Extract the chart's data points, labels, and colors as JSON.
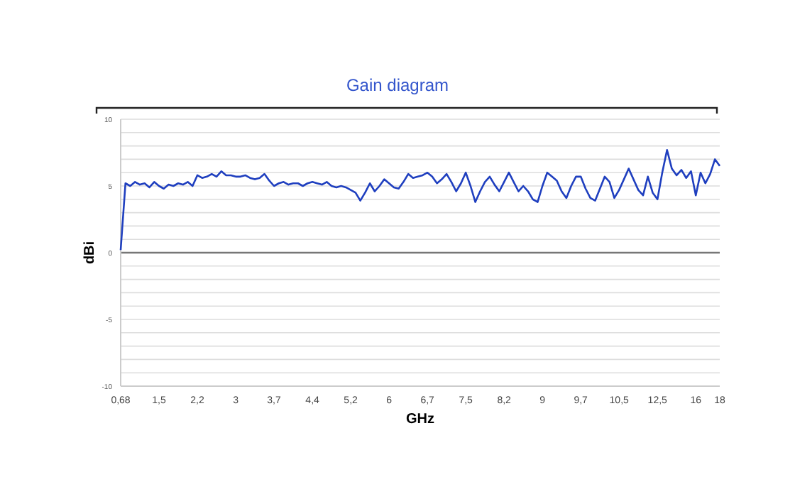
{
  "chart_data": {
    "type": "line",
    "title": "Gain diagram",
    "xlabel": "GHz",
    "ylabel": "dBi",
    "categories": [
      "0,68",
      null,
      null,
      null,
      null,
      null,
      null,
      null,
      "1,5",
      null,
      null,
      null,
      null,
      null,
      null,
      null,
      "2,2",
      null,
      null,
      null,
      null,
      null,
      null,
      null,
      "3",
      null,
      null,
      null,
      null,
      null,
      null,
      null,
      "3,7",
      null,
      null,
      null,
      null,
      null,
      null,
      null,
      "4,4",
      null,
      null,
      null,
      null,
      null,
      null,
      null,
      "5,2",
      null,
      null,
      null,
      null,
      null,
      null,
      null,
      "6",
      null,
      null,
      null,
      null,
      null,
      null,
      null,
      "6,7",
      null,
      null,
      null,
      null,
      null,
      null,
      null,
      "7,5",
      null,
      null,
      null,
      null,
      null,
      null,
      null,
      "8,2",
      null,
      null,
      null,
      null,
      null,
      null,
      null,
      "9",
      null,
      null,
      null,
      null,
      null,
      null,
      null,
      "9,7",
      null,
      null,
      null,
      null,
      null,
      null,
      null,
      "10,5",
      null,
      null,
      null,
      null,
      null,
      null,
      null,
      "12,5",
      null,
      null,
      null,
      null,
      null,
      null,
      null,
      "16",
      null,
      null,
      null,
      null,
      "18"
    ],
    "series": [
      {
        "color": "#1f3fbf",
        "values": [
          0.2,
          5.2,
          5.0,
          5.3,
          5.1,
          5.2,
          4.9,
          5.3,
          5.0,
          4.8,
          5.1,
          5.0,
          5.2,
          5.1,
          5.3,
          5.0,
          5.8,
          5.6,
          5.7,
          5.9,
          5.7,
          6.1,
          5.8,
          5.8,
          5.7,
          5.7,
          5.8,
          5.6,
          5.5,
          5.6,
          5.9,
          5.4,
          5.0,
          5.2,
          5.3,
          5.1,
          5.2,
          5.2,
          5.0,
          5.2,
          5.3,
          5.2,
          5.1,
          5.3,
          5.0,
          4.9,
          5.0,
          4.9,
          4.7,
          4.5,
          3.9,
          4.5,
          5.2,
          4.6,
          5.0,
          5.5,
          5.2,
          4.9,
          4.8,
          5.3,
          5.9,
          5.6,
          5.7,
          5.8,
          6.0,
          5.7,
          5.2,
          5.5,
          5.9,
          5.3,
          4.6,
          5.2,
          6.0,
          5.0,
          3.8,
          4.6,
          5.3,
          5.7,
          5.1,
          4.6,
          5.3,
          6.0,
          5.3,
          4.6,
          5.0,
          4.6,
          4.0,
          3.8,
          5.0,
          6.0,
          5.7,
          5.4,
          4.6,
          4.1,
          5.0,
          5.7,
          5.7,
          4.8,
          4.1,
          3.9,
          4.8,
          5.7,
          5.3,
          4.1,
          4.7,
          5.5,
          6.3,
          5.5,
          4.7,
          4.3,
          5.7,
          4.5,
          4.0,
          6.0,
          7.7,
          6.3,
          5.8,
          6.2,
          5.6,
          6.1,
          4.3,
          6.0,
          5.2,
          5.9,
          7.0,
          6.5
        ]
      }
    ],
    "ylim": [
      -10,
      10
    ],
    "yticks": [
      -10,
      {
        "value": -9,
        "label": null
      },
      {
        "value": -8,
        "label": null
      },
      {
        "value": -7,
        "label": null
      },
      {
        "value": -6,
        "label": null
      },
      -5,
      {
        "value": -4,
        "label": null
      },
      {
        "value": -3,
        "label": null
      },
      {
        "value": -2,
        "label": null
      },
      {
        "value": -1,
        "label": null
      },
      0,
      {
        "value": 1,
        "label": null
      },
      {
        "value": 2,
        "label": null
      },
      {
        "value": 3,
        "label": null
      },
      {
        "value": 4,
        "label": null
      },
      5,
      {
        "value": 6,
        "label": null
      },
      {
        "value": 7,
        "label": null
      },
      {
        "value": 8,
        "label": null
      },
      {
        "value": 9,
        "label": null
      },
      10
    ],
    "grid": "y",
    "marker": "none",
    "line_style": "solid"
  }
}
